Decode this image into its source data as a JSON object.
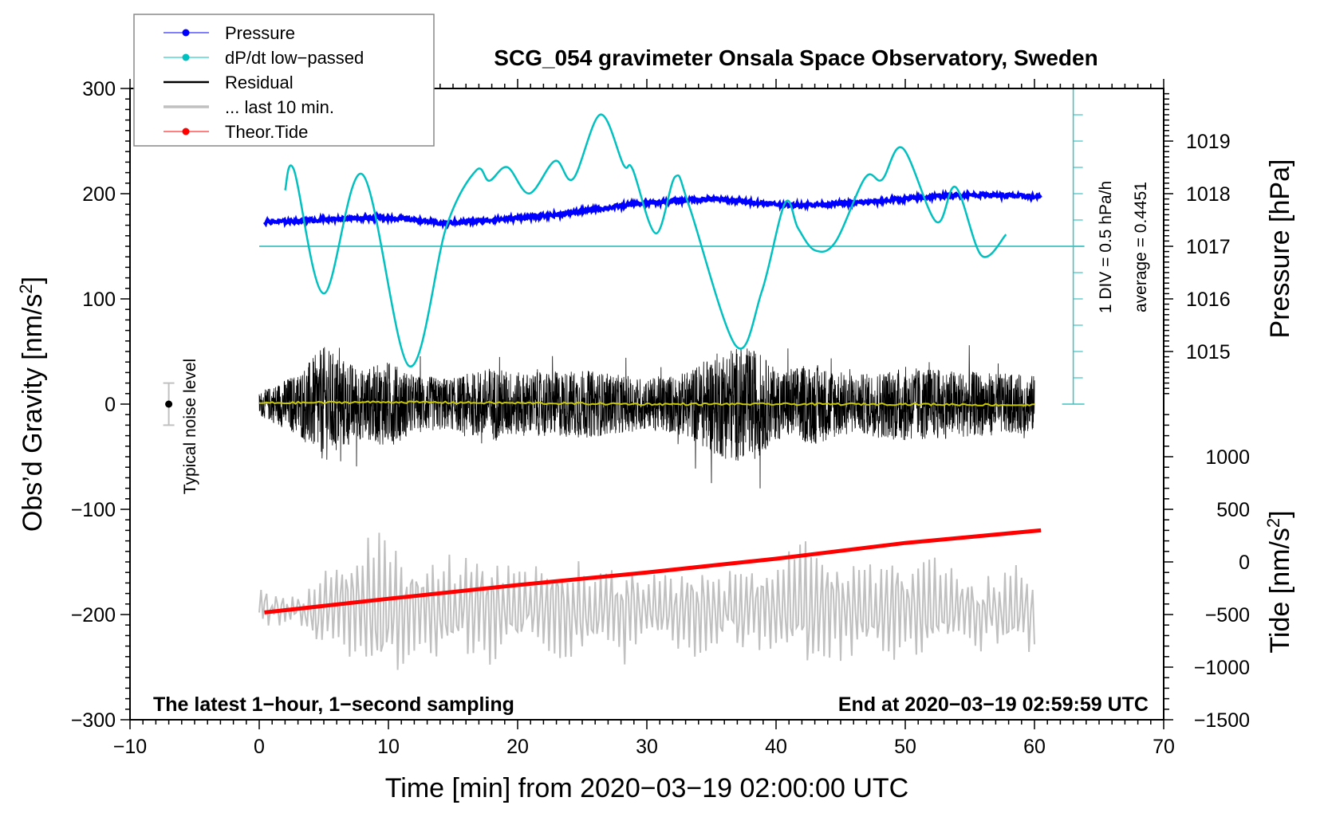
{
  "chart_data": {
    "type": "line",
    "title": "SCG_054 gravimeter Onsala Space Observatory, Sweden",
    "xlabel": "Time [min] from 2020−03−19 02:00:00 UTC",
    "ylabel_left": "Obs’d Gravity [nm/s",
    "ylabel_left_sup": "2",
    "ylabel_left_end": "]",
    "ylabel_right_pressure": "Pressure [hPa]",
    "ylabel_right_tide": "Tide [nm/s",
    "ylabel_right_tide_sup": "2",
    "ylabel_right_tide_end": "]",
    "xlim": [
      -10,
      70
    ],
    "ylim_left": [
      -300,
      300
    ],
    "x_ticks": [
      -10,
      0,
      10,
      20,
      30,
      40,
      50,
      60,
      70
    ],
    "x_tick_labels": [
      "−10",
      "0",
      "10",
      "20",
      "30",
      "40",
      "50",
      "60",
      "70"
    ],
    "y_left_ticks": [
      -300,
      -200,
      -100,
      0,
      100,
      200,
      300
    ],
    "y_left_tick_labels": [
      "−300",
      "−200",
      "−100",
      "0",
      "100",
      "200",
      "300"
    ],
    "pressure_axis": {
      "ticks": [
        1015,
        1016,
        1017,
        1018,
        1019
      ],
      "tick_labels": [
        "1015",
        "1016",
        "1017",
        "1018",
        "1019"
      ],
      "ref_hpa": 1017,
      "ref_left_value": 150,
      "left_units_per_hpa": 50
    },
    "tide_axis": {
      "ticks": [
        -1500,
        -1000,
        -500,
        0,
        500,
        1000
      ],
      "tick_labels": [
        "−1500",
        "−1000",
        "−500",
        "0",
        "500",
        "1000"
      ],
      "ref_tide": 0,
      "ref_left_value": -150,
      "left_units_per_tide": 0.1
    },
    "dpdt_axis": {
      "label_div": "1 DIV = 0.5 hPa/h",
      "label_avg": "average = 0.4451",
      "div_hpa_per_h": 0.5,
      "average": 0.4451,
      "left_units_per_div": 25,
      "avg_line_left_value": 150,
      "divs": 12
    },
    "legend": {
      "position": "top-left",
      "entries": [
        {
          "label": "Pressure",
          "color": "#0000ff",
          "marker": true
        },
        {
          "label": "dP/dt low−passed",
          "color": "#00c0c0",
          "marker": true
        },
        {
          "label": "Residual",
          "color": "#000000",
          "marker": false
        },
        {
          "label": "... last 10 min.",
          "color": "#c0c0c0",
          "marker": false
        },
        {
          "label": "Theor.Tide",
          "color": "#ff0000",
          "marker": true
        }
      ]
    },
    "annotations": {
      "bottom_left": "The latest 1−hour, 1−second sampling",
      "bottom_right": "End at 2020−03−19 02:59:59 UTC",
      "noise_label": "Typical noise level",
      "noise_level": {
        "x": -7,
        "center": 0,
        "halfwidth": 20
      }
    },
    "series": [
      {
        "name": "Pressure",
        "unit": "hPa",
        "color": "#0000ff",
        "x": [
          0.4,
          3,
          6,
          9,
          11.5,
          14,
          17,
          20,
          23,
          26,
          29,
          32,
          35,
          38,
          41,
          44,
          47,
          50,
          53,
          56,
          60.5
        ],
        "values": [
          1017.46,
          1017.48,
          1017.52,
          1017.55,
          1017.52,
          1017.44,
          1017.48,
          1017.54,
          1017.6,
          1017.7,
          1017.8,
          1017.86,
          1017.9,
          1017.84,
          1017.78,
          1017.8,
          1017.84,
          1017.9,
          1017.96,
          1017.98,
          1017.94
        ]
      },
      {
        "name": "dP/dt low-passed",
        "unit": "hPa/h",
        "color": "#00c0c0",
        "x": [
          2.0,
          2.7,
          5.0,
          8.0,
          11.6,
          14.5,
          16.8,
          17.8,
          19.2,
          20.9,
          22.9,
          24.3,
          26.4,
          28.2,
          28.9,
          30.7,
          32.2,
          33.3,
          36.9,
          38.9,
          40.7,
          41.7,
          43.0,
          44.6,
          46.9,
          48.2,
          49.8,
          52.4,
          53.9,
          55.9,
          57.8
        ],
        "values": [
          1.51,
          1.89,
          -0.45,
          1.81,
          -1.83,
          0.83,
          1.89,
          1.69,
          1.95,
          1.45,
          2.07,
          1.73,
          2.95,
          1.99,
          1.91,
          0.69,
          1.77,
          1.19,
          -1.45,
          -0.41,
          1.27,
          0.79,
          0.37,
          0.53,
          1.75,
          1.71,
          2.31,
          0.91,
          1.57,
          0.27,
          0.67
        ]
      },
      {
        "name": "Residual",
        "unit": "nm/s2",
        "color": "#000000",
        "x_range": [
          0,
          60
        ],
        "envelope_x": [
          0,
          3,
          5,
          8,
          10,
          12,
          15,
          18,
          20,
          22,
          25,
          28,
          30,
          33,
          35,
          36.5,
          38.5,
          40,
          43,
          46,
          50,
          53,
          56,
          60
        ],
        "envelope_amp": [
          20,
          55,
          100,
          60,
          75,
          50,
          45,
          65,
          55,
          55,
          60,
          50,
          45,
          55,
          85,
          100,
          95,
          60,
          70,
          50,
          65,
          60,
          55,
          50
        ]
      },
      {
        "name": "Residual smoothed",
        "unit": "nm/s2",
        "color": "#c8c800",
        "x": [
          0,
          10,
          20,
          30,
          40,
          50,
          60
        ],
        "values": [
          1,
          2,
          1,
          0,
          0,
          0,
          -1
        ]
      },
      {
        "name": "... last 10 min.",
        "unit": "nm/s2",
        "color": "#c0c0c0",
        "x_range": [
          0,
          60
        ],
        "center": -195,
        "envelope_x": [
          0,
          3.5,
          4,
          7,
          9.5,
          12,
          15,
          17,
          20,
          24,
          26,
          28,
          30,
          33,
          36,
          40,
          42,
          46,
          50,
          52,
          55,
          58,
          60
        ],
        "envelope_amp": [
          15,
          15,
          35,
          60,
          80,
          60,
          45,
          60,
          40,
          50,
          45,
          50,
          35,
          45,
          40,
          50,
          60,
          45,
          55,
          60,
          35,
          45,
          40
        ]
      },
      {
        "name": "Theor.Tide",
        "unit": "nm/s2",
        "color": "#ff0000",
        "x": [
          0.4,
          10,
          20,
          30,
          40,
          50,
          60.5
        ],
        "values": [
          -48,
          -35,
          -22,
          -10,
          3,
          18,
          30
        ]
      }
    ]
  }
}
